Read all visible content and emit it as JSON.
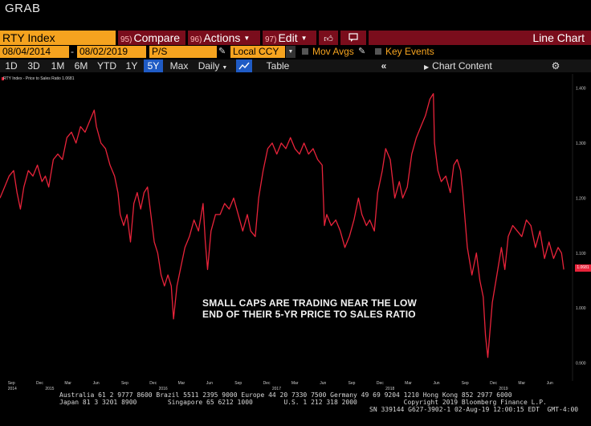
{
  "app": {
    "title": "GRAB"
  },
  "toolbar": {
    "ticker": "RTY Index",
    "compare": {
      "num": "95)",
      "label": "Compare"
    },
    "actions": {
      "num": "96)",
      "label": "Actions"
    },
    "edit": {
      "num": "97)",
      "label": "Edit"
    },
    "chart_type": "Line Chart"
  },
  "range": {
    "start": "08/04/2014",
    "end": "08/02/2019",
    "field": "P/S",
    "currency": "Local CCY",
    "mov_avgs": "Mov Avgs",
    "key_events": "Key Events"
  },
  "periods": {
    "items": [
      "1D",
      "3D",
      "1M",
      "6M",
      "YTD",
      "1Y",
      "5Y",
      "Max"
    ],
    "selected": "5Y",
    "frequency": "Daily",
    "table": "Table",
    "chart_content": "Chart Content"
  },
  "colors": {
    "accent": "#f5a31f",
    "series": "#e8233a",
    "selected": "#1f5bc5",
    "bar": "#7a0d1c"
  },
  "chart_data": {
    "type": "line",
    "series_label": "RTY Index - Price to Sales Ratio 1.0681",
    "last_value": "1.0681",
    "ylim": [
      0.87,
      1.42
    ],
    "yticks": [
      {
        "value": 0.9,
        "label": "0.900"
      },
      {
        "value": 1.0,
        "label": "1.000"
      },
      {
        "value": 1.1,
        "label": "1.100"
      },
      {
        "value": 1.2,
        "label": "1.200"
      },
      {
        "value": 1.3,
        "label": "1.300"
      },
      {
        "value": 1.4,
        "label": "1.400"
      }
    ],
    "xlim": [
      2014.58,
      2019.62
    ],
    "xticks": [
      {
        "t": 2014.67,
        "label": "Sep"
      },
      {
        "t": 2014.92,
        "label": "Dec"
      },
      {
        "t": 2015.17,
        "label": "Mar"
      },
      {
        "t": 2015.42,
        "label": "Jun"
      },
      {
        "t": 2015.67,
        "label": "Sep"
      },
      {
        "t": 2015.92,
        "label": "Dec"
      },
      {
        "t": 2016.17,
        "label": "Mar"
      },
      {
        "t": 2016.42,
        "label": "Jun"
      },
      {
        "t": 2016.67,
        "label": "Sep"
      },
      {
        "t": 2016.92,
        "label": "Dec"
      },
      {
        "t": 2017.17,
        "label": "Mar"
      },
      {
        "t": 2017.42,
        "label": "Jun"
      },
      {
        "t": 2017.67,
        "label": "Sep"
      },
      {
        "t": 2017.92,
        "label": "Dec"
      },
      {
        "t": 2018.17,
        "label": "Mar"
      },
      {
        "t": 2018.42,
        "label": "Jun"
      },
      {
        "t": 2018.67,
        "label": "Sep"
      },
      {
        "t": 2018.92,
        "label": "Dec"
      },
      {
        "t": 2019.17,
        "label": "Mar"
      },
      {
        "t": 2019.42,
        "label": "Jun"
      }
    ],
    "year_labels": [
      {
        "t": 2014.67,
        "label": "2014"
      },
      {
        "t": 2015.0,
        "label": "2015"
      },
      {
        "t": 2016.0,
        "label": "2016"
      },
      {
        "t": 2017.0,
        "label": "2017"
      },
      {
        "t": 2018.0,
        "label": "2018"
      },
      {
        "t": 2019.0,
        "label": "2019"
      }
    ],
    "points": [
      [
        2014.58,
        1.2
      ],
      [
        2014.62,
        1.22
      ],
      [
        2014.66,
        1.24
      ],
      [
        2014.7,
        1.25
      ],
      [
        2014.73,
        1.21
      ],
      [
        2014.76,
        1.18
      ],
      [
        2014.79,
        1.22
      ],
      [
        2014.83,
        1.25
      ],
      [
        2014.87,
        1.24
      ],
      [
        2014.91,
        1.26
      ],
      [
        2014.95,
        1.23
      ],
      [
        2014.98,
        1.24
      ],
      [
        2015.01,
        1.22
      ],
      [
        2015.05,
        1.27
      ],
      [
        2015.09,
        1.28
      ],
      [
        2015.13,
        1.27
      ],
      [
        2015.17,
        1.31
      ],
      [
        2015.21,
        1.32
      ],
      [
        2015.25,
        1.3
      ],
      [
        2015.29,
        1.33
      ],
      [
        2015.33,
        1.32
      ],
      [
        2015.37,
        1.34
      ],
      [
        2015.41,
        1.36
      ],
      [
        2015.43,
        1.33
      ],
      [
        2015.47,
        1.3
      ],
      [
        2015.51,
        1.29
      ],
      [
        2015.55,
        1.26
      ],
      [
        2015.59,
        1.24
      ],
      [
        2015.62,
        1.21
      ],
      [
        2015.64,
        1.17
      ],
      [
        2015.67,
        1.15
      ],
      [
        2015.7,
        1.17
      ],
      [
        2015.73,
        1.12
      ],
      [
        2015.76,
        1.19
      ],
      [
        2015.79,
        1.21
      ],
      [
        2015.82,
        1.18
      ],
      [
        2015.85,
        1.21
      ],
      [
        2015.88,
        1.22
      ],
      [
        2015.91,
        1.17
      ],
      [
        2015.94,
        1.12
      ],
      [
        2015.97,
        1.1
      ],
      [
        2016.0,
        1.06
      ],
      [
        2016.03,
        1.04
      ],
      [
        2016.06,
        1.06
      ],
      [
        2016.09,
        1.04
      ],
      [
        2016.11,
        0.98
      ],
      [
        2016.14,
        1.04
      ],
      [
        2016.17,
        1.07
      ],
      [
        2016.21,
        1.11
      ],
      [
        2016.25,
        1.13
      ],
      [
        2016.29,
        1.16
      ],
      [
        2016.33,
        1.14
      ],
      [
        2016.37,
        1.19
      ],
      [
        2016.39,
        1.12
      ],
      [
        2016.41,
        1.07
      ],
      [
        2016.44,
        1.14
      ],
      [
        2016.48,
        1.17
      ],
      [
        2016.52,
        1.17
      ],
      [
        2016.56,
        1.19
      ],
      [
        2016.6,
        1.18
      ],
      [
        2016.64,
        1.2
      ],
      [
        2016.68,
        1.17
      ],
      [
        2016.72,
        1.14
      ],
      [
        2016.76,
        1.17
      ],
      [
        2016.79,
        1.14
      ],
      [
        2016.83,
        1.13
      ],
      [
        2016.86,
        1.2
      ],
      [
        2016.9,
        1.25
      ],
      [
        2016.94,
        1.29
      ],
      [
        2016.98,
        1.3
      ],
      [
        2017.02,
        1.28
      ],
      [
        2017.06,
        1.3
      ],
      [
        2017.1,
        1.29
      ],
      [
        2017.14,
        1.31
      ],
      [
        2017.18,
        1.29
      ],
      [
        2017.22,
        1.28
      ],
      [
        2017.26,
        1.3
      ],
      [
        2017.3,
        1.28
      ],
      [
        2017.34,
        1.29
      ],
      [
        2017.38,
        1.27
      ],
      [
        2017.42,
        1.26
      ],
      [
        2017.44,
        1.15
      ],
      [
        2017.46,
        1.17
      ],
      [
        2017.5,
        1.15
      ],
      [
        2017.54,
        1.16
      ],
      [
        2017.58,
        1.14
      ],
      [
        2017.62,
        1.11
      ],
      [
        2017.66,
        1.13
      ],
      [
        2017.7,
        1.16
      ],
      [
        2017.74,
        1.2
      ],
      [
        2017.77,
        1.17
      ],
      [
        2017.81,
        1.15
      ],
      [
        2017.84,
        1.16
      ],
      [
        2017.88,
        1.14
      ],
      [
        2017.91,
        1.21
      ],
      [
        2017.95,
        1.25
      ],
      [
        2017.98,
        1.29
      ],
      [
        2018.02,
        1.27
      ],
      [
        2018.06,
        1.2
      ],
      [
        2018.1,
        1.23
      ],
      [
        2018.13,
        1.2
      ],
      [
        2018.17,
        1.22
      ],
      [
        2018.21,
        1.28
      ],
      [
        2018.25,
        1.31
      ],
      [
        2018.29,
        1.33
      ],
      [
        2018.33,
        1.35
      ],
      [
        2018.37,
        1.38
      ],
      [
        2018.4,
        1.39
      ],
      [
        2018.41,
        1.3
      ],
      [
        2018.44,
        1.25
      ],
      [
        2018.47,
        1.23
      ],
      [
        2018.51,
        1.24
      ],
      [
        2018.55,
        1.21
      ],
      [
        2018.58,
        1.26
      ],
      [
        2018.61,
        1.27
      ],
      [
        2018.64,
        1.25
      ],
      [
        2018.66,
        1.21
      ],
      [
        2018.7,
        1.11
      ],
      [
        2018.74,
        1.06
      ],
      [
        2018.78,
        1.1
      ],
      [
        2018.81,
        1.05
      ],
      [
        2018.84,
        1.02
      ],
      [
        2018.86,
        0.95
      ],
      [
        2018.88,
        0.91
      ],
      [
        2018.92,
        1.01
      ],
      [
        2018.96,
        1.06
      ],
      [
        2019.0,
        1.11
      ],
      [
        2019.03,
        1.07
      ],
      [
        2019.06,
        1.13
      ],
      [
        2019.1,
        1.15
      ],
      [
        2019.14,
        1.14
      ],
      [
        2019.18,
        1.13
      ],
      [
        2019.22,
        1.16
      ],
      [
        2019.26,
        1.15
      ],
      [
        2019.3,
        1.11
      ],
      [
        2019.34,
        1.14
      ],
      [
        2019.38,
        1.09
      ],
      [
        2019.42,
        1.12
      ],
      [
        2019.46,
        1.09
      ],
      [
        2019.5,
        1.11
      ],
      [
        2019.53,
        1.1
      ],
      [
        2019.55,
        1.07
      ]
    ]
  },
  "annotation": {
    "line1": "SMALL CAPS ARE TRADING NEAR THE LOW",
    "line2": "END OF THEIR 5-YR PRICE TO SALES RATIO"
  },
  "footer": {
    "line1": "Australia 61 2 9777 8600 Brazil 5511 2395 9000 Europe 44 20 7330 7500 Germany 49 69 9204 1210 Hong Kong 852 2977 6000",
    "line2": "Japan 81 3 3201 8900        Singapore 65 6212 1000        U.S. 1 212 318 2000            Copyright 2019 Bloomberg Finance L.P.",
    "line3": "SN 339144 G627-3902-1 02-Aug-19 12:00:15 EDT  GMT-4:00"
  }
}
